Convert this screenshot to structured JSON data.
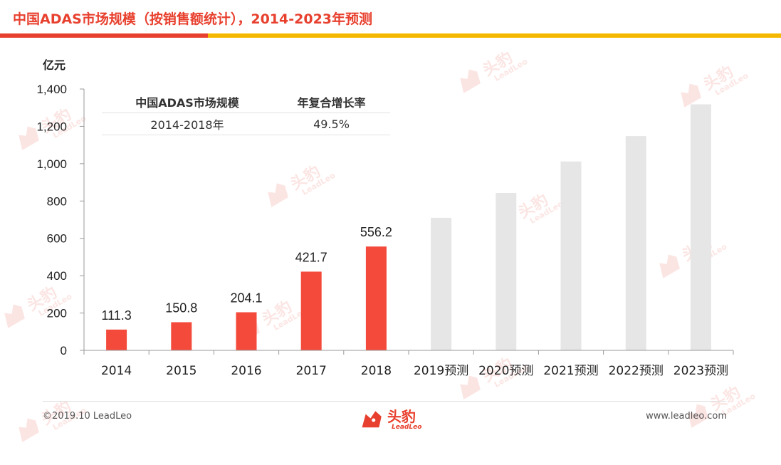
{
  "header": {
    "title": "中国ADAS市场规模（按销售额统计），2014-2023年预测",
    "accent_red": "#e8402e",
    "accent_yellow": "#f5b800"
  },
  "table": {
    "col1_header": "中国ADAS市场规模",
    "col2_header": "年复合增长率",
    "col1_value": "2014-2018年",
    "col2_value": "49.5%"
  },
  "footer": {
    "copyright": "©2019.10 LeadLeo",
    "website": "www.leadleo.com",
    "logo_cn": "头豹",
    "logo_en": "LeadLeo"
  },
  "watermark": {
    "cn": "头豹",
    "en": "LeadLeo"
  },
  "chart_data": {
    "type": "bar",
    "ylabel": "亿元",
    "ylim": [
      0,
      1400
    ],
    "yticks": [
      "0",
      "200",
      "400",
      "600",
      "800",
      "1,000",
      "1,200",
      "1,400"
    ],
    "categories": [
      "2014",
      "2015",
      "2016",
      "2017",
      "2018",
      "2019预测",
      "2020预测",
      "2021预测",
      "2022预测",
      "2023预测"
    ],
    "values": [
      111.3,
      150.8,
      204.1,
      421.7,
      556.2,
      710,
      843,
      1012,
      1148,
      1318
    ],
    "labels": [
      "111.3",
      "150.8",
      "204.1",
      "421.7",
      "556.2",
      "",
      "",
      "",
      "",
      ""
    ],
    "actual_color": "#f44a3c",
    "forecast_color": "#e6e6e6"
  }
}
